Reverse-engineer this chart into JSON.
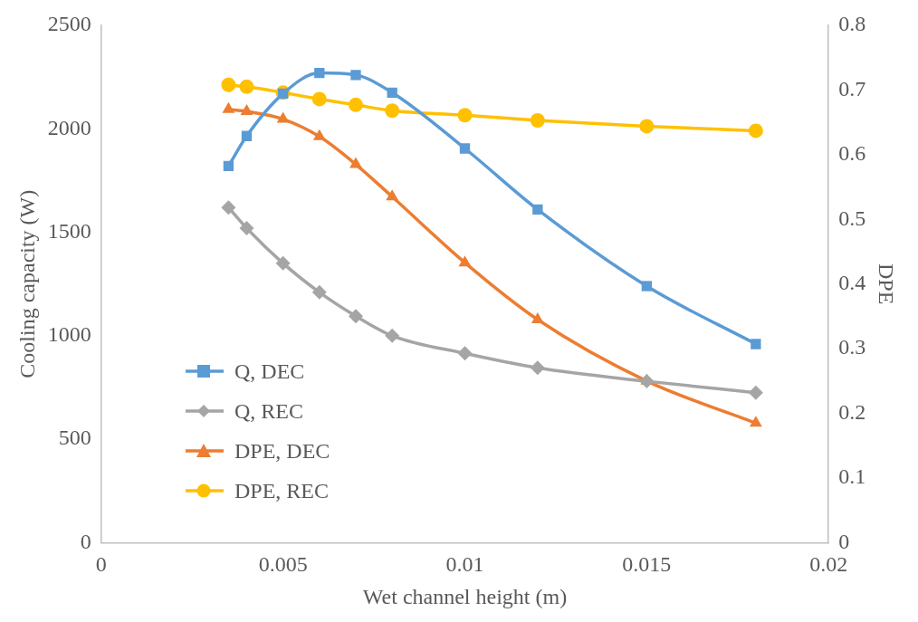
{
  "chart_data": {
    "type": "line",
    "xlabel": "Wet channel height (m)",
    "ylabel": "Cooling capacity (W)",
    "y2label": "DPE",
    "xlim": [
      0,
      0.02
    ],
    "xticks": [
      0,
      0.005,
      0.01,
      0.015,
      0.02
    ],
    "ylim": [
      0,
      2500
    ],
    "yticks": [
      0,
      500,
      1000,
      1500,
      2000,
      2500
    ],
    "y2lim": [
      0,
      0.8
    ],
    "y2ticks": [
      0,
      0.1,
      0.2,
      0.3,
      0.4,
      0.5,
      0.6,
      0.7,
      0.8
    ],
    "grid": false,
    "legend": "bottom left",
    "x": [
      0.0035,
      0.004,
      0.005,
      0.006,
      0.007,
      0.008,
      0.01,
      0.012,
      0.015,
      0.018
    ],
    "series": [
      {
        "name": "Q, DEC",
        "color": "#5b9bd5",
        "marker": "square",
        "values": [
          1820,
          1965,
          2170,
          2270,
          2260,
          2175,
          1905,
          1610,
          1240,
          960
        ]
      },
      {
        "name": "Q, REC",
        "color": "#a5a5a5",
        "marker": "diamond",
        "values": [
          1620,
          1520,
          1350,
          1210,
          1095,
          1000,
          915,
          845,
          780,
          725
        ]
      },
      {
        "name": "DPE, DEC",
        "color": "#ed7d31",
        "marker": "triangle",
        "axis": "y2",
        "values": [
          0.67,
          0.667,
          0.655,
          0.628,
          0.585,
          0.535,
          0.433,
          0.345,
          0.25,
          0.185
        ]
      },
      {
        "name": "DPE, REC",
        "color": "#ffc000",
        "marker": "circle",
        "axis": "y2",
        "values": [
          0.708,
          0.705,
          0.696,
          0.686,
          0.677,
          0.668,
          0.661,
          0.653,
          0.644,
          0.637
        ]
      }
    ]
  }
}
